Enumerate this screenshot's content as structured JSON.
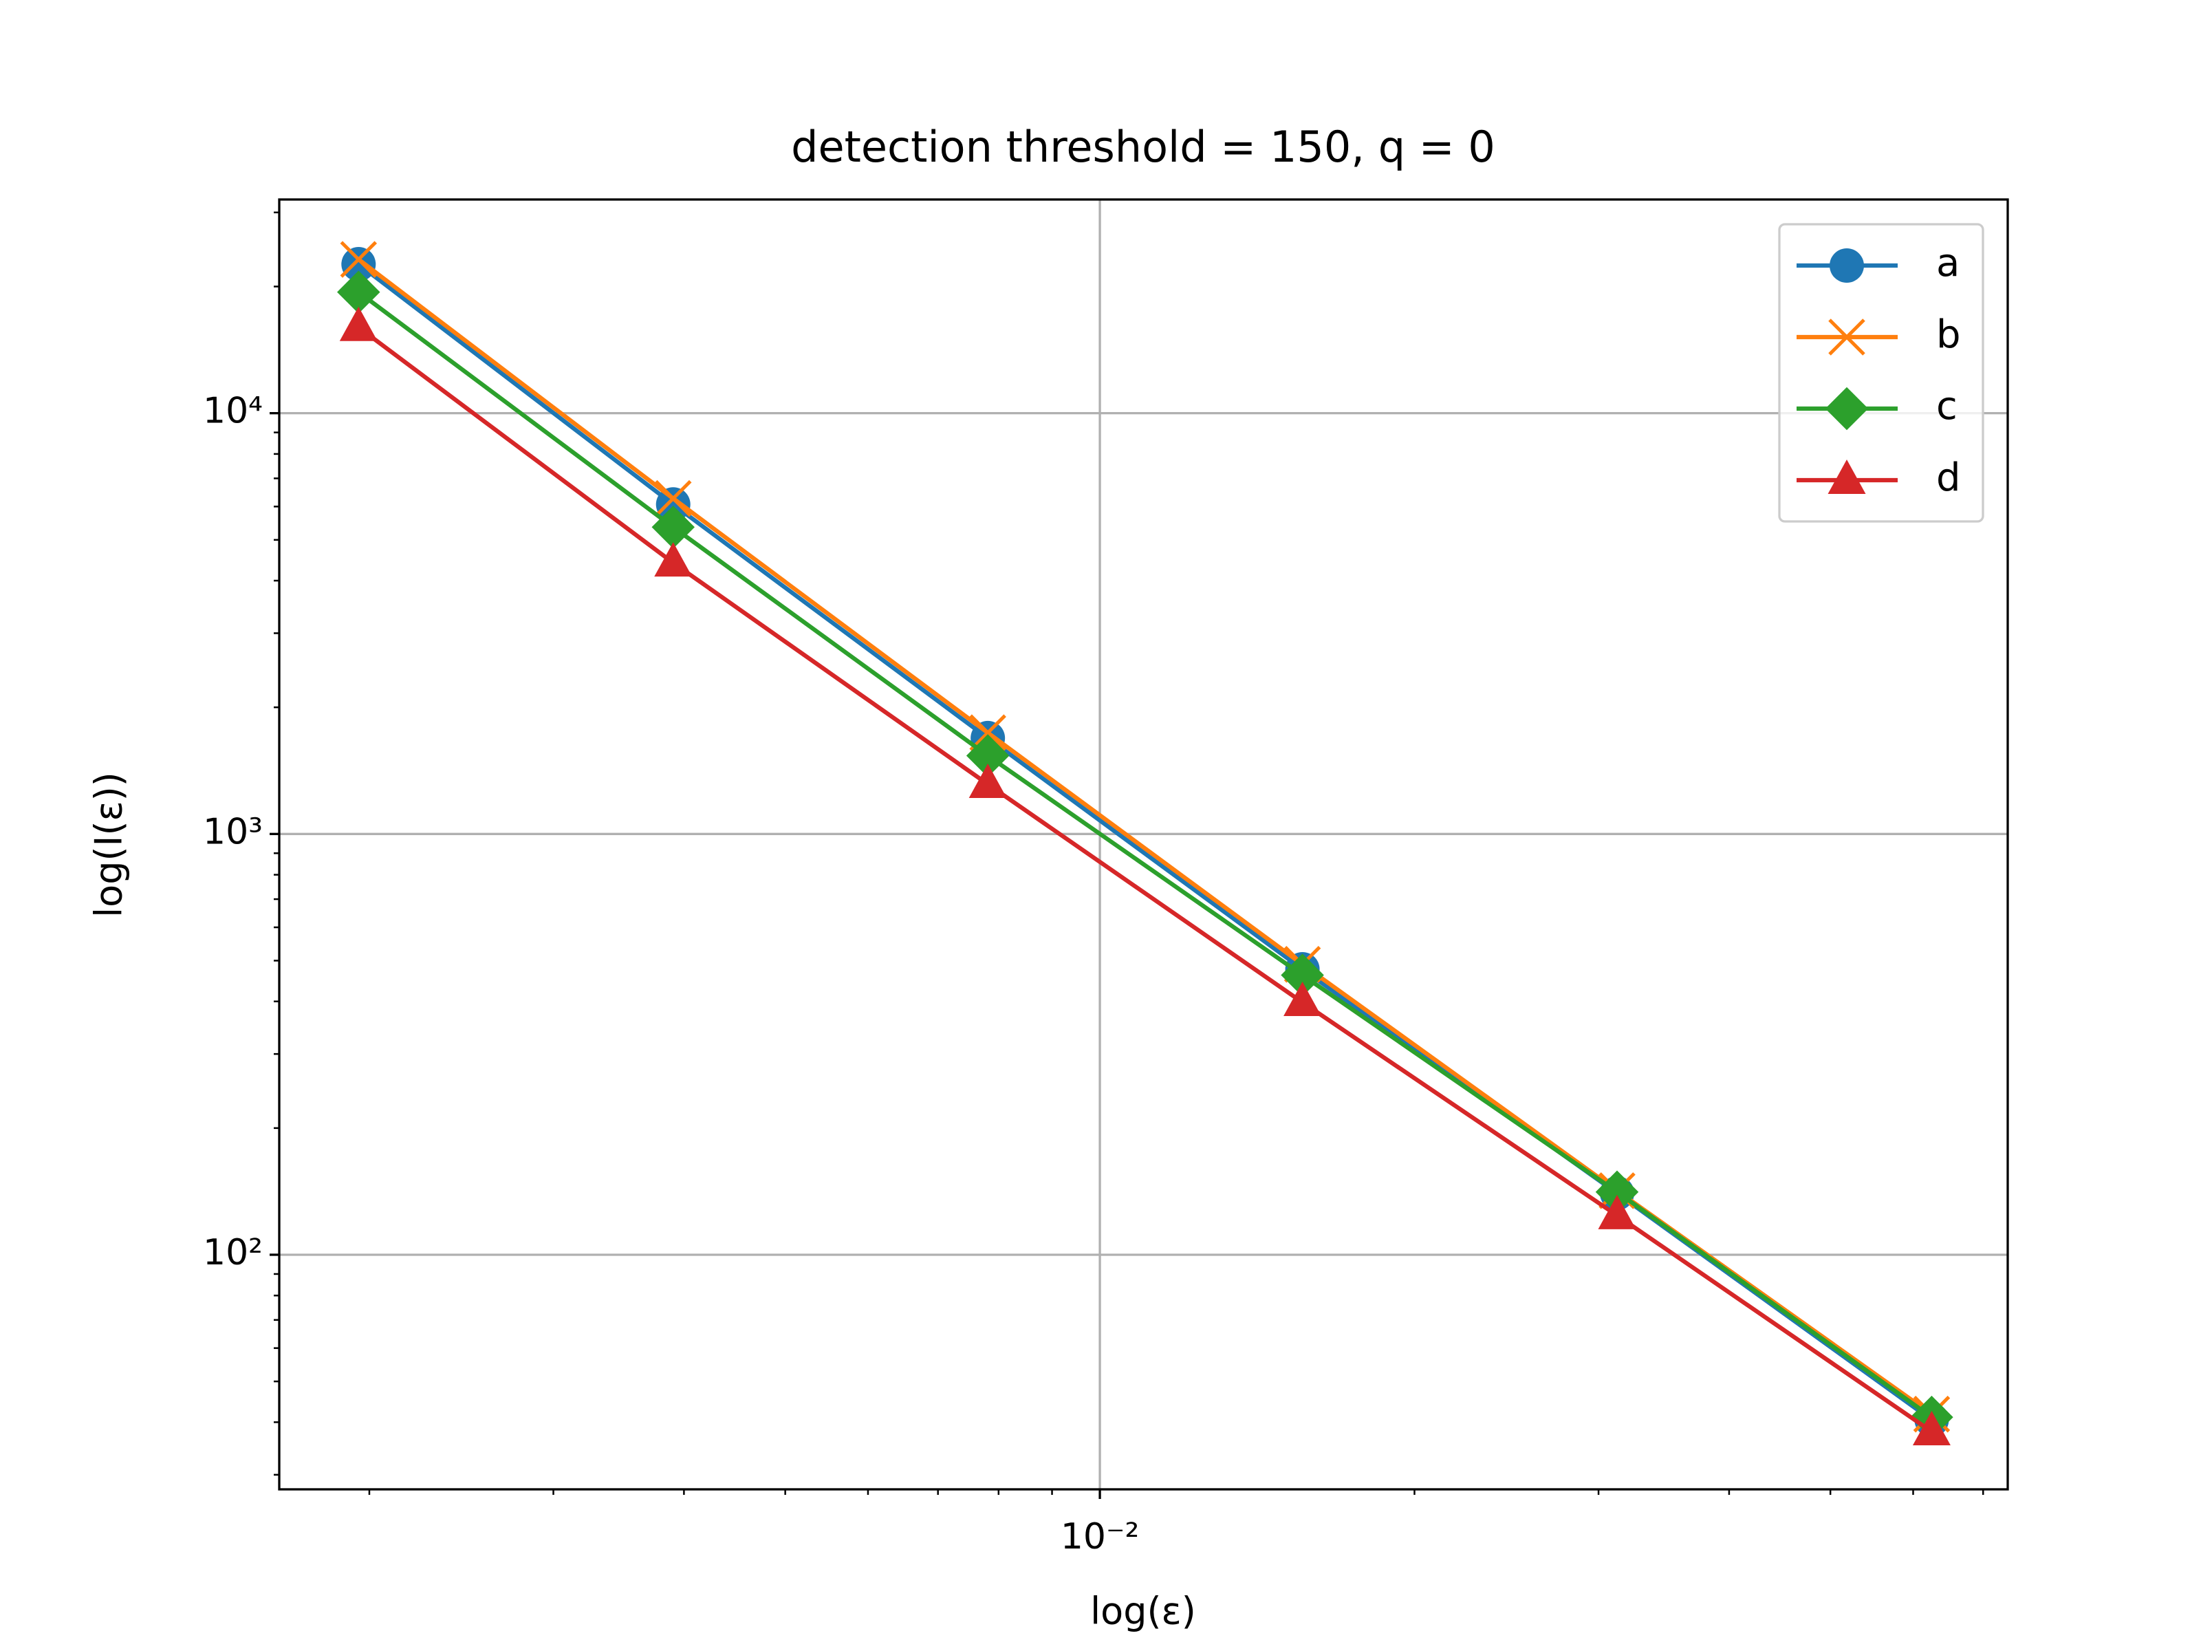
{
  "chart_data": {
    "type": "line",
    "title": "detection threshold = 150, q = 0",
    "xlabel": "log(ε)",
    "ylabel": "log(I(ε))",
    "x": [
      0.001953125,
      0.00390625,
      0.0078125,
      0.015625,
      0.03125,
      0.0625
    ],
    "series": [
      {
        "name": "a",
        "color": "#1f77b4",
        "marker": "circle",
        "values": [
          22600,
          6070,
          1690,
          477,
          140,
          40.5
        ]
      },
      {
        "name": "b",
        "color": "#ff7f0e",
        "marker": "x",
        "values": [
          23200,
          6270,
          1740,
          490,
          142,
          41.8
        ]
      },
      {
        "name": "c",
        "color": "#2ca02c",
        "marker": "diamond",
        "values": [
          19400,
          5360,
          1535,
          462,
          141,
          41.1
        ]
      },
      {
        "name": "d",
        "color": "#d62728",
        "marker": "triangle",
        "values": [
          16000,
          4410,
          1313,
          398,
          124,
          38
        ]
      }
    ],
    "xscale": "log",
    "yscale": "log",
    "xlim": [
      0.00164,
      0.0739
    ],
    "ylim": [
      27.7,
      32200
    ],
    "xticks": [
      {
        "value": 0.01,
        "label": "10⁻²"
      }
    ],
    "yticks": [
      {
        "value": 100,
        "label": "10²"
      },
      {
        "value": 1000,
        "label": "10³"
      },
      {
        "value": 10000,
        "label": "10⁴"
      }
    ],
    "xminorticks": [
      0.002,
      0.003,
      0.004,
      0.005,
      0.006,
      0.007,
      0.008,
      0.009,
      0.02,
      0.03,
      0.04,
      0.05,
      0.06,
      0.07
    ],
    "yminorticks": [
      30,
      40,
      50,
      60,
      70,
      80,
      90,
      200,
      300,
      400,
      500,
      600,
      700,
      800,
      900,
      2000,
      3000,
      4000,
      5000,
      6000,
      7000,
      8000,
      9000,
      20000,
      30000
    ],
    "grid": true,
    "legend": "upper right"
  }
}
